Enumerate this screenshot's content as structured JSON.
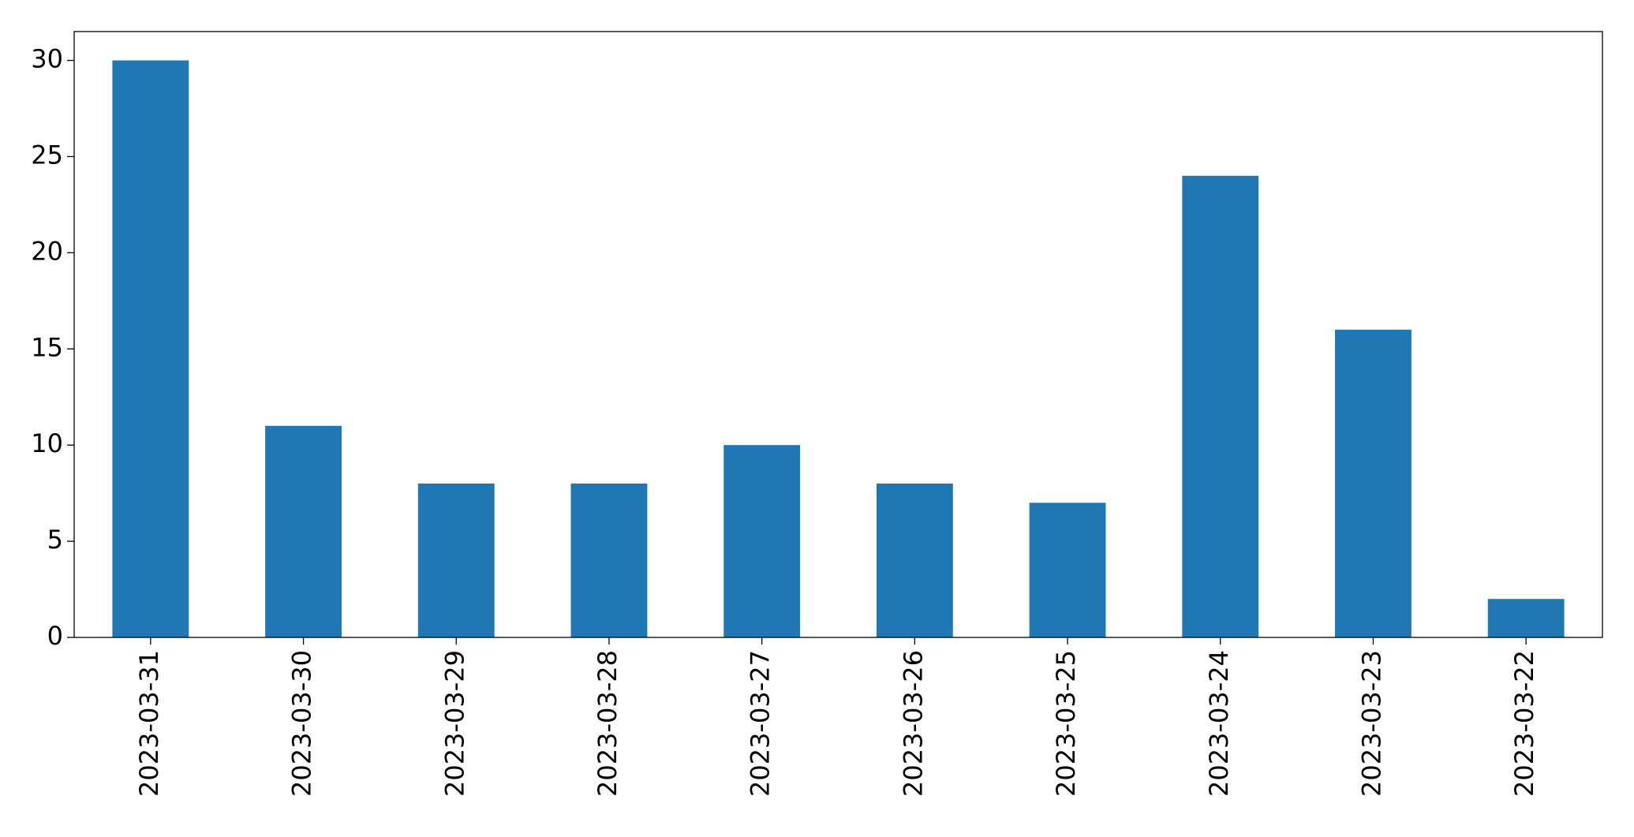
{
  "chart_data": {
    "type": "bar",
    "categories": [
      "2023-03-31",
      "2023-03-30",
      "2023-03-29",
      "2023-03-28",
      "2023-03-27",
      "2023-03-26",
      "2023-03-25",
      "2023-03-24",
      "2023-03-23",
      "2023-03-22"
    ],
    "values": [
      30,
      11,
      8,
      8,
      10,
      8,
      7,
      24,
      16,
      2
    ],
    "color": "#1f77b4",
    "ylim": [
      0,
      31.5
    ],
    "yticks": [
      0,
      5,
      10,
      15,
      20,
      25,
      30
    ],
    "grid": false
  }
}
